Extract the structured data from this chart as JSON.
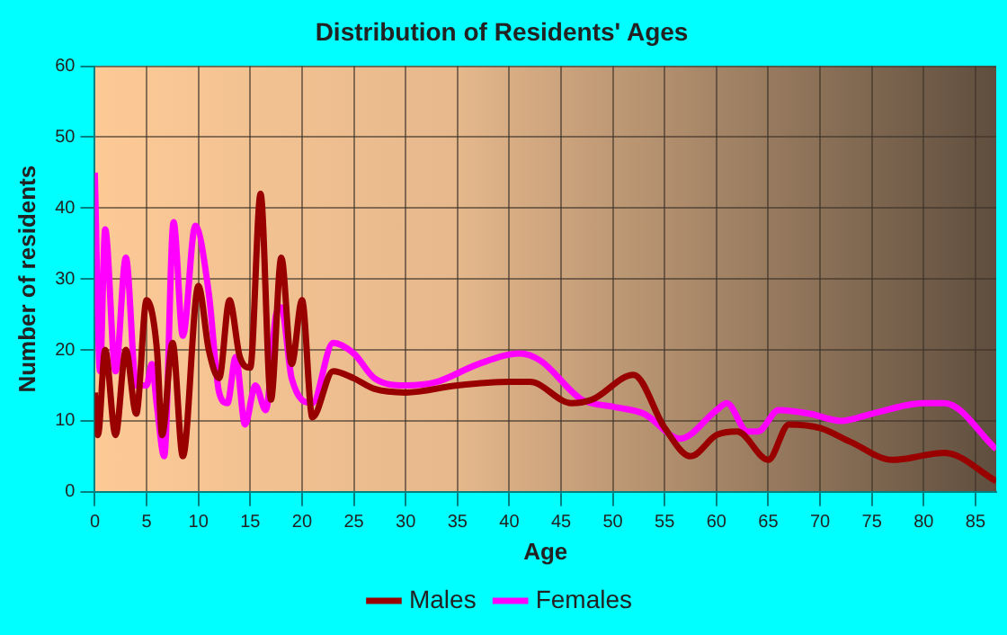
{
  "chart_data": {
    "type": "line",
    "title": "Distribution of Residents' Ages",
    "xlabel": "Age",
    "ylabel": "Number of residents",
    "xlim": [
      0,
      87
    ],
    "xticks": [
      0,
      5,
      10,
      15,
      20,
      25,
      30,
      35,
      40,
      45,
      50,
      55,
      60,
      65,
      70,
      75,
      80,
      85
    ],
    "ylim": [
      0,
      60
    ],
    "yticks": [
      0,
      10,
      20,
      30,
      40,
      50,
      60
    ],
    "grid": true,
    "legend": "bottom",
    "marker": "none",
    "series": [
      {
        "name": "Males",
        "color": "#990000",
        "x": [
          0,
          0.3,
          1,
          2,
          3,
          4,
          5,
          6,
          6.5,
          7.5,
          8.5,
          10,
          11,
          12,
          13,
          14,
          15,
          16,
          17,
          18,
          19,
          20,
          21,
          23,
          25,
          27,
          30,
          35,
          40,
          42,
          46,
          48,
          52,
          55,
          57.5,
          60,
          62,
          65,
          67,
          70,
          73,
          77,
          82,
          87
        ],
        "values": [
          14,
          8,
          20,
          8,
          20,
          11,
          27,
          20,
          8,
          21,
          5,
          29,
          20,
          16,
          27,
          19,
          17.5,
          42,
          13,
          33,
          18,
          27,
          10.5,
          17,
          16,
          14.5,
          14,
          15,
          15.5,
          15.5,
          12.5,
          13,
          16.5,
          9,
          5,
          8,
          8.5,
          4.5,
          9.5,
          9,
          7,
          4.5,
          5.5,
          1.5
        ]
      },
      {
        "name": "Females",
        "color": "#ff00ff",
        "x": [
          0,
          0.5,
          1,
          2,
          3,
          4,
          5,
          5.5,
          6,
          6.7,
          7.6,
          8.5,
          9.7,
          11,
          12,
          12.8,
          13.6,
          14.5,
          15.5,
          16.5,
          17.5,
          18,
          19,
          21,
          23,
          25,
          27,
          30,
          33,
          37,
          41,
          43,
          47,
          50,
          53,
          56.5,
          60,
          61,
          63,
          64,
          66,
          69,
          72,
          75,
          80,
          82,
          87
        ],
        "values": [
          45,
          17,
          37,
          17,
          33,
          15,
          15,
          18,
          12,
          5,
          38,
          22,
          37.5,
          28,
          14,
          12.5,
          19,
          9.5,
          15,
          11.5,
          25,
          26,
          16,
          12.5,
          21,
          19.5,
          16,
          15,
          15.5,
          18,
          19.5,
          18.5,
          13,
          12,
          11,
          7.5,
          11.5,
          12.5,
          8.5,
          8.5,
          11.5,
          11,
          10,
          11,
          12.5,
          12.5,
          6
        ]
      }
    ]
  }
}
